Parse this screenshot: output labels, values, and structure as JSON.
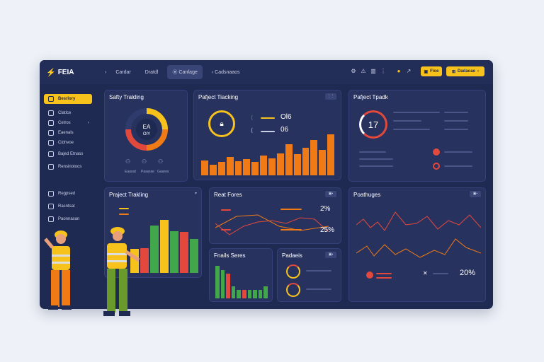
{
  "app": {
    "logo_text": "FEIA"
  },
  "nav": {
    "back_label": "‹",
    "item1": "Cardar",
    "item2": "Dratdl",
    "item3": "Canfage",
    "item4": "Cadsnaaos"
  },
  "topbar": {
    "btn1_label": "Fioe",
    "btn2_label": "Dadaoae"
  },
  "sidebar": {
    "items": [
      {
        "label": "Besrlory"
      },
      {
        "label": "Clatlce"
      },
      {
        "label": "Cetros"
      },
      {
        "label": "Eaenals"
      },
      {
        "label": "Cidnvoe"
      },
      {
        "label": "Bajed Etnass"
      },
      {
        "label": "Rensinotoos"
      },
      {
        "label": "Regpsed"
      },
      {
        "label": "Rasntsat"
      },
      {
        "label": "Paonnasan"
      }
    ]
  },
  "cards": {
    "safety": {
      "title": "Safty Tralding",
      "center": "EA\nOIY",
      "labels": [
        "Eaaoat",
        "Paaarae",
        "Gaares"
      ]
    },
    "project1": {
      "title": "Pafject Tiacking",
      "row1_value": "Ol6",
      "row2_value": "06"
    },
    "project2": {
      "title": "Pafject Tpadk",
      "gauge": "17"
    },
    "project3": {
      "title": "Praject Trakling"
    },
    "real": {
      "title": "Reat Fores",
      "value1": "2%",
      "value2": "25%"
    },
    "field": {
      "title": "Fnails Seres"
    },
    "gadets": {
      "title": "Padaeis"
    },
    "weather": {
      "title": "Poathuges",
      "value": "20%"
    }
  },
  "colors": {
    "accent": "#f6c21b",
    "orange": "#f07a16",
    "red": "#e2483c",
    "green": "#42a64a",
    "panel": "#27325f",
    "bg": "#1f2a52"
  },
  "chart_data": [
    {
      "type": "bar",
      "values": [
        2.4,
        1.7,
        2.1,
        2.9,
        2.3,
        2.6,
        2.1,
        3.2,
        2.7,
        3.5,
        5,
        3.4,
        4.4,
        5.6,
        4.1,
        6.5
      ],
      "color": "#f07a16"
    },
    {
      "type": "bar",
      "series": [
        {
          "values": [
            3.2,
            3.3,
            6.3,
            7,
            5.5,
            5.4,
            4.5
          ]
        }
      ],
      "colors": [
        "#f6c21b",
        "#e2483c",
        "#42a64a",
        "#f6c21b",
        "#42a64a",
        "#e2483c",
        "#42a64a"
      ]
    },
    {
      "type": "bar",
      "values": [
        8,
        7,
        6,
        3,
        2,
        2,
        2,
        2,
        2,
        3
      ],
      "colors": [
        "#42a64a",
        "#42a64a",
        "#e2483c",
        "#42a64a",
        "#42a64a",
        "#e2483c",
        "#42a64a",
        "#42a64a",
        "#42a64a",
        "#42a64a"
      ]
    },
    {
      "type": "line",
      "series": [
        {
          "values": [
            5,
            6,
            4,
            7,
            3,
            8,
            5,
            6,
            7,
            4,
            6,
            8,
            5,
            7
          ]
        },
        {
          "values": [
            4,
            5,
            6,
            5,
            7,
            5,
            6,
            4,
            5,
            7,
            5,
            6,
            4,
            5
          ]
        }
      ]
    }
  ]
}
